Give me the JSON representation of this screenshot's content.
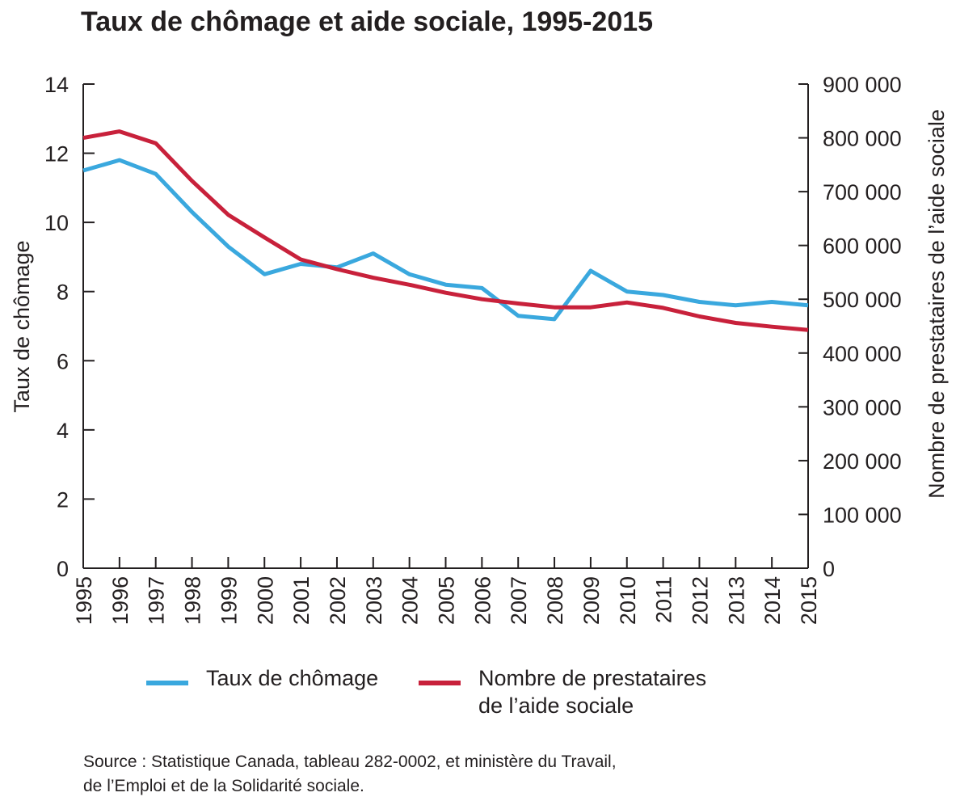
{
  "title": "Taux de chômage et aide sociale, 1995-2015",
  "chart_data": {
    "type": "line",
    "title": "Taux de chômage et aide sociale, 1995-2015",
    "x": [
      "1995",
      "1996",
      "1997",
      "1998",
      "1999",
      "2000",
      "2001",
      "2002",
      "2003",
      "2004",
      "2005",
      "2006",
      "2007",
      "2008",
      "2009",
      "2010",
      "2011",
      "2012",
      "2013",
      "2014",
      "2015"
    ],
    "ylabel_left": "Taux de chômage",
    "ylabel_right": "Nombre de prestataires de l’aide sociale",
    "ylim_left": [
      0,
      14
    ],
    "ylim_right": [
      0,
      900000
    ],
    "yticks_left": [
      "0",
      "2",
      "4",
      "6",
      "8",
      "10",
      "12",
      "14"
    ],
    "yticks_right": [
      "0",
      "100 000",
      "200 000",
      "300 000",
      "400 000",
      "500 000",
      "600 000",
      "700 000",
      "800 000",
      "900 000"
    ],
    "series": [
      {
        "name": "Taux de chômage",
        "axis": "left",
        "color": "#3aa8de",
        "values": [
          11.5,
          11.8,
          11.4,
          10.3,
          9.3,
          8.5,
          8.8,
          8.7,
          9.1,
          8.5,
          8.2,
          8.1,
          7.3,
          7.2,
          8.6,
          8.0,
          7.9,
          7.7,
          7.6,
          7.7,
          7.6
        ]
      },
      {
        "name": "Nombre de prestataires de l’aide sociale",
        "axis": "right",
        "color": "#c8213b",
        "values": [
          800000,
          812000,
          790000,
          720000,
          657000,
          615000,
          574000,
          556000,
          540000,
          527000,
          512000,
          500000,
          492000,
          485000,
          485000,
          494000,
          484000,
          468000,
          456000,
          449000,
          443000
        ]
      }
    ],
    "grid": false,
    "legend_position": "bottom"
  },
  "legend": {
    "unemployment_label": "Taux de chômage",
    "welfare_label_line1": "Nombre de prestataires",
    "welfare_label_line2": "de l’aide sociale"
  },
  "source": {
    "line1": "Source : Statistique Canada, tableau 282-0002, et ministère du Travail,",
    "line2": "de l’Emploi et de la Solidarité sociale."
  }
}
